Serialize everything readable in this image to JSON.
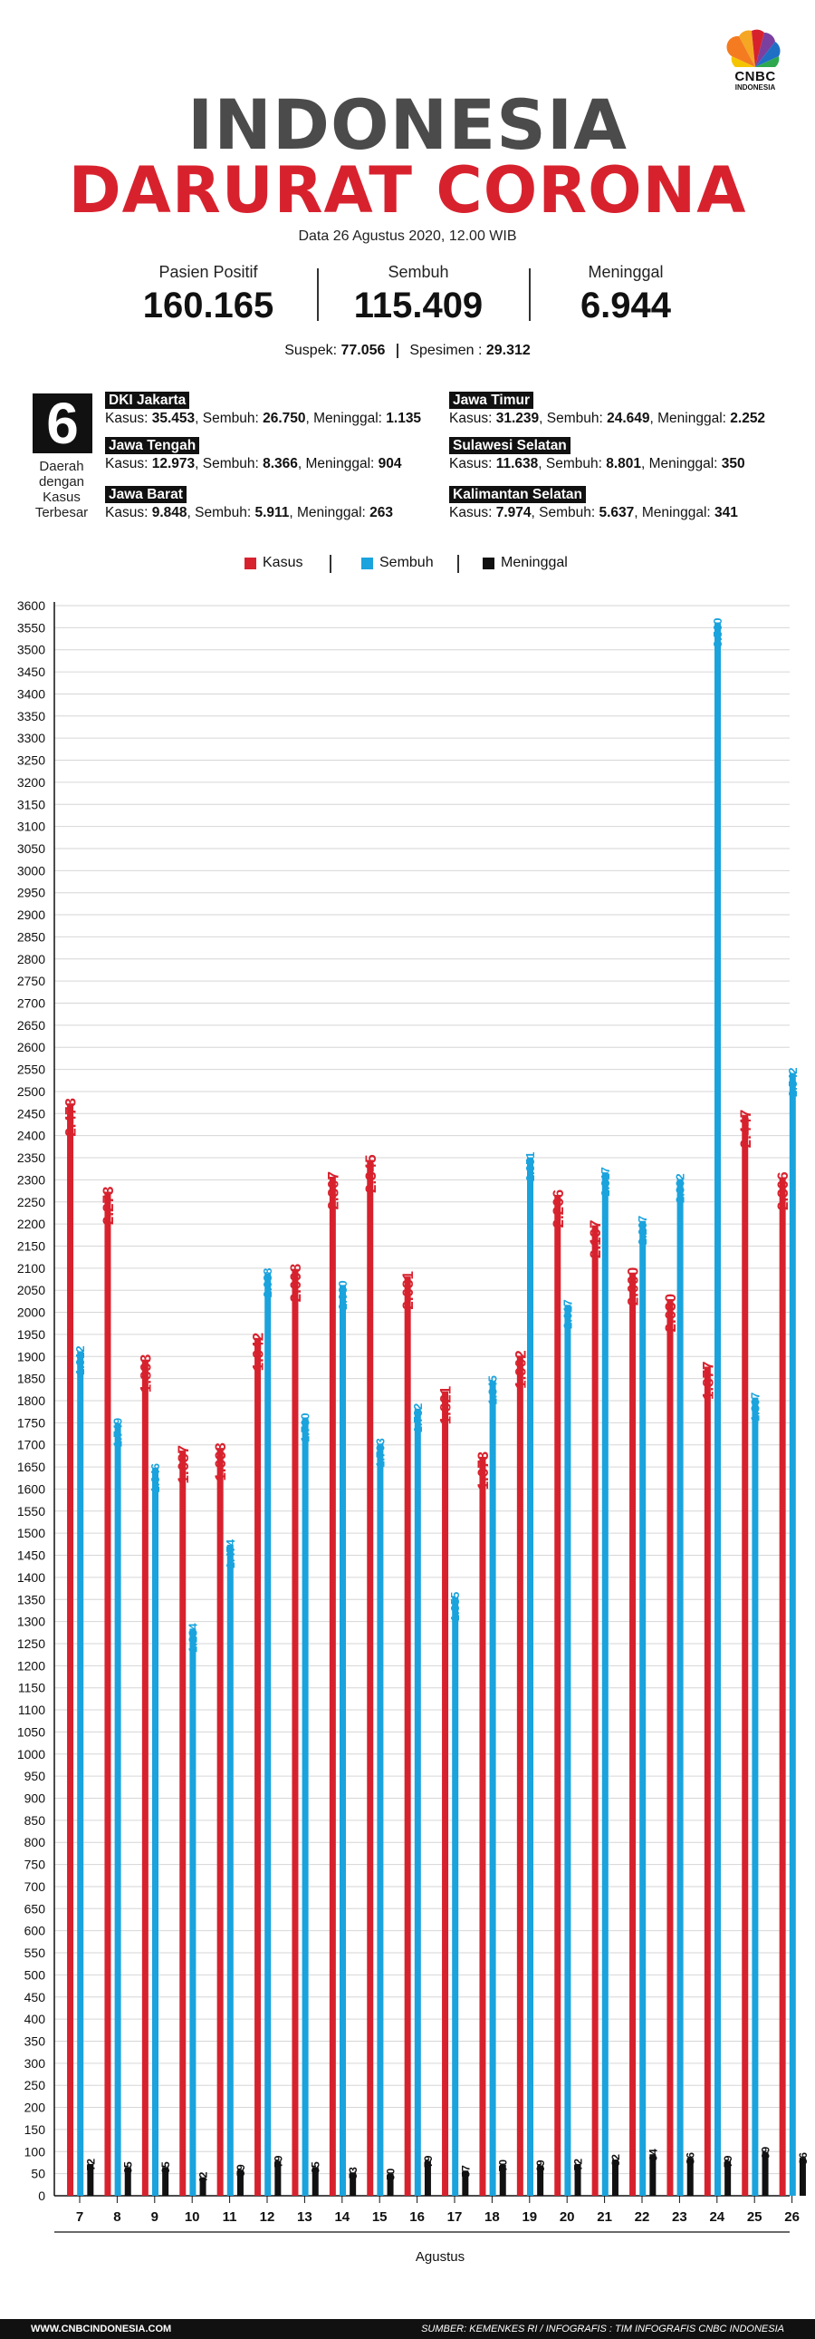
{
  "header": {
    "logo_text": "CNBC",
    "logo_sub": "INDONESIA",
    "title_line1": "INDONESIA",
    "title_line2": "DARURAT CORONA",
    "date": "Data 26 Agustus 2020, 12.00 WIB"
  },
  "stats": [
    {
      "label": "Pasien Positif",
      "value": "160.165"
    },
    {
      "label": "Sembuh",
      "value": "115.409"
    },
    {
      "label": "Meninggal",
      "value": "6.944"
    }
  ],
  "extra": {
    "suspek_label": "Suspek: ",
    "suspek_value": "77.056",
    "spesimen_label": "Spesimen : ",
    "spesimen_value": "29.312"
  },
  "regions_box": {
    "number": "6",
    "label_lines": [
      "Daerah",
      "dengan",
      "Kasus",
      "Terbesar"
    ]
  },
  "regions": [
    {
      "name": "DKI Jakarta",
      "kasus": "35.453",
      "sembuh": "26.750",
      "meninggal": "1.135"
    },
    {
      "name": "Jawa Tengah",
      "kasus": "12.973",
      "sembuh": "8.366",
      "meninggal": "904"
    },
    {
      "name": "Jawa Barat",
      "kasus": "9.848",
      "sembuh": "5.911",
      "meninggal": "263"
    },
    {
      "name": "Jawa Timur",
      "kasus": "31.239",
      "sembuh": "24.649",
      "meninggal": "2.252"
    },
    {
      "name": "Sulawesi Selatan",
      "kasus": "11.638",
      "sembuh": "8.801",
      "meninggal": "350"
    },
    {
      "name": "Kalimantan Selatan",
      "kasus": "7.974",
      "sembuh": "5.637",
      "meninggal": "341"
    }
  ],
  "region_labels": {
    "kasus": "Kasus: ",
    "sembuh": ", Sembuh: ",
    "meninggal": ", Meninggal: "
  },
  "colors": {
    "kasus": "#d7222e",
    "sembuh": "#1aa3dd",
    "meninggal": "#111111",
    "title_grey": "#4b4b4b"
  },
  "chart_data": {
    "type": "bar",
    "categories": [
      "7",
      "8",
      "9",
      "10",
      "11",
      "12",
      "13",
      "14",
      "15",
      "16",
      "17",
      "18",
      "19",
      "20",
      "21",
      "22",
      "23",
      "24",
      "25",
      "26"
    ],
    "series": [
      {
        "name": "Kasus",
        "color": "#d7222e",
        "values": [
          2473,
          2273,
          1893,
          1687,
          1693,
          1942,
          2098,
          2307,
          2345,
          2081,
          1821,
          1673,
          1902,
          2266,
          2197,
          2090,
          2030,
          1877,
          2447,
          2306
        ],
        "labels": [
          "2.473",
          "2.273",
          "1.893",
          "1.687",
          "1.693",
          "1.942",
          "2.098",
          "2.307",
          "2.345",
          "2.081",
          "1.821",
          "1.673",
          "1.902",
          "2.266",
          "2.197",
          "2.090",
          "2.030",
          "1.877",
          "2.447",
          "2.306"
        ]
      },
      {
        "name": "Sembuh",
        "color": "#1aa3dd",
        "values": [
          1912,
          1749,
          1646,
          1284,
          1474,
          2088,
          1760,
          2060,
          1703,
          1782,
          1355,
          1845,
          2351,
          2017,
          2317,
          2207,
          2302,
          3560,
          1807,
          2542
        ],
        "labels": [
          "1.912",
          "1.749",
          "1.646",
          "1.284",
          "1.474",
          "2.088",
          "1.760",
          "2.060",
          "1.703",
          "1.782",
          "1.355",
          "1.845",
          "2.351",
          "2.017",
          "2.317",
          "2.207",
          "2.302",
          "3.560",
          "1.807",
          "2.542"
        ]
      },
      {
        "name": "Meninggal",
        "color": "#111111",
        "values": [
          72,
          65,
          65,
          42,
          59,
          79,
          65,
          53,
          50,
          79,
          57,
          70,
          69,
          72,
          82,
          94,
          86,
          79,
          99,
          86
        ],
        "labels": [
          "72",
          "65",
          "65",
          "42",
          "59",
          "79",
          "65",
          "53",
          "50",
          "79",
          "57",
          "70",
          "69",
          "72",
          "82",
          "94",
          "86",
          "79",
          "99",
          "86"
        ]
      }
    ],
    "ylim": [
      0,
      3600
    ],
    "ytick_step": 50,
    "xlabel": "Agustus",
    "ylabel": "",
    "grid": true,
    "legend": "top-center"
  },
  "footer": {
    "left": "WWW.CNBCINDONESIA.COM",
    "right": "SUMBER: KEMENKES RI / INFOGRAFIS : TIM INFOGRAFIS CNBC INDONESIA"
  }
}
